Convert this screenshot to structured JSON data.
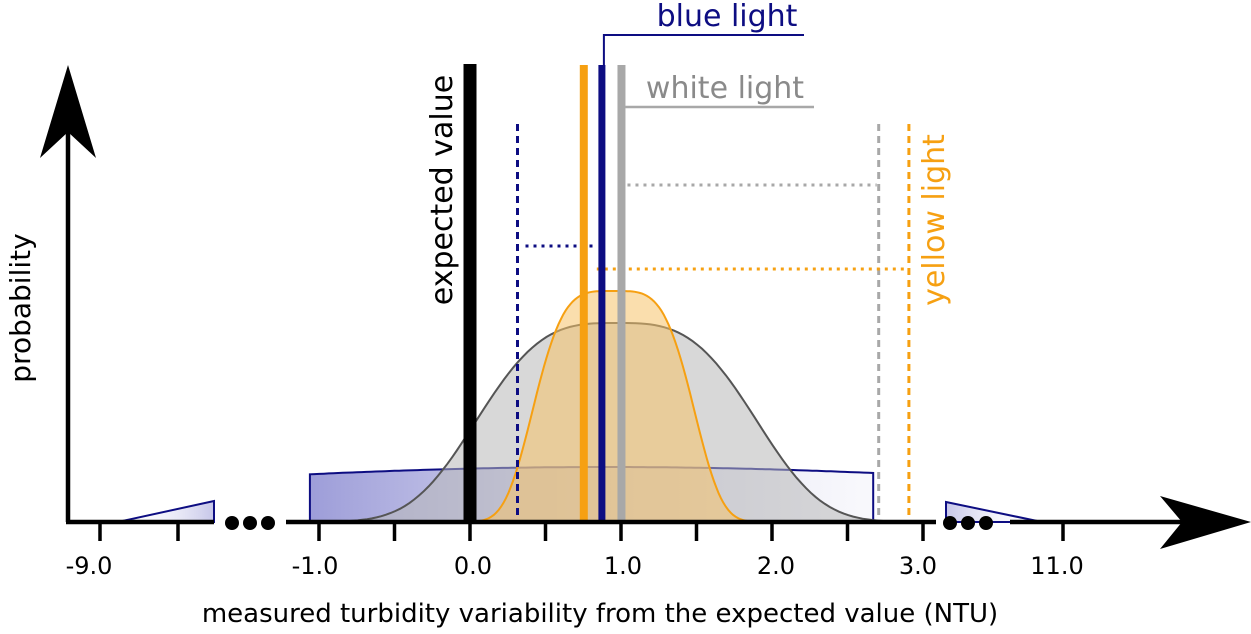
{
  "chart_data": {
    "type": "area",
    "title": "",
    "xlabel": "measured turbidity variability from the expected value (NTU)",
    "ylabel": "probability",
    "x_ticks": [
      {
        "label": "-9.0",
        "value": -9.0
      },
      {
        "label": "-1.0",
        "value": -1.0
      },
      {
        "label": "0.0",
        "value": 0.0
      },
      {
        "label": "1.0",
        "value": 1.0
      },
      {
        "label": "2.0",
        "value": 2.0
      },
      {
        "label": "3.0",
        "value": 3.0
      },
      {
        "label": "11.0",
        "value": 11.0
      }
    ],
    "axis_breaks": [
      "-9.0 to -1.0",
      "3.0 to 11.0"
    ],
    "expected_value": {
      "label": "expected value",
      "x": 0.0
    },
    "series": [
      {
        "name": "blue light",
        "color": "#0d0d82",
        "fill": "#8c8cd2",
        "mean": 0.9,
        "interval": [
          0.5,
          2.7
        ],
        "spread": "wide"
      },
      {
        "name": "white light",
        "color": "#9e9e9e",
        "fill": "#c2c2c2",
        "mean": 0.97,
        "interval": [
          0.97,
          2.7
        ],
        "spread": "medium"
      },
      {
        "name": "yellow light",
        "color": "#f6a012",
        "fill": "#f6c877",
        "mean": 0.8,
        "interval": [
          0.8,
          2.9
        ],
        "spread": "narrow"
      }
    ]
  }
}
